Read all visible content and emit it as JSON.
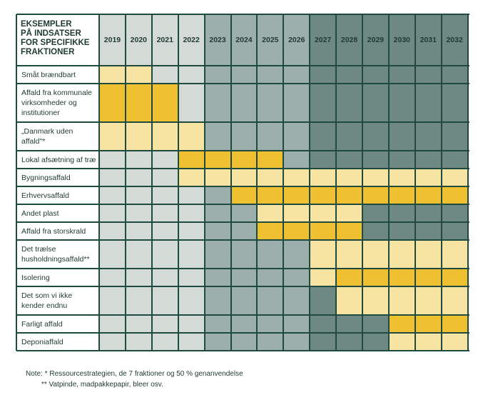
{
  "chart_data": {
    "type": "heatmap",
    "title": "EKSEMPLER\nPÅ INDSATSER\nFOR SPECIFIKKE\nFRAKTIONER",
    "years": [
      "2019",
      "2020",
      "2021",
      "2022",
      "2023",
      "2024",
      "2025",
      "2026",
      "2027",
      "2028",
      "2029",
      "2030",
      "2031",
      "2032"
    ],
    "rows": [
      {
        "label": "Småt brændbart",
        "values": [
          1,
          1,
          0,
          0,
          0,
          0,
          0,
          0,
          0,
          0,
          0,
          0,
          0,
          0
        ]
      },
      {
        "label": "Affald fra kommunale\nvirksomheder og\ninstitutioner",
        "values": [
          2,
          2,
          2,
          0,
          0,
          0,
          0,
          0,
          0,
          0,
          0,
          0,
          0,
          0
        ]
      },
      {
        "label": "„Danmark uden\naffald\"*",
        "values": [
          1,
          1,
          1,
          1,
          0,
          0,
          0,
          0,
          0,
          0,
          0,
          0,
          0,
          0
        ]
      },
      {
        "label": "Lokal afsætning af træ",
        "values": [
          0,
          0,
          0,
          2,
          2,
          2,
          2,
          0,
          0,
          0,
          0,
          0,
          0,
          0
        ]
      },
      {
        "label": "Bygningsaffald",
        "values": [
          0,
          0,
          0,
          1,
          1,
          1,
          1,
          1,
          1,
          1,
          1,
          1,
          1,
          1
        ]
      },
      {
        "label": "Erhvervsaffald",
        "values": [
          0,
          0,
          0,
          0,
          0,
          2,
          2,
          2,
          2,
          2,
          2,
          2,
          2,
          2
        ]
      },
      {
        "label": "Andet plast",
        "values": [
          0,
          0,
          0,
          0,
          0,
          0,
          1,
          1,
          1,
          1,
          0,
          0,
          0,
          0
        ]
      },
      {
        "label": "Affald fra storskrald",
        "values": [
          0,
          0,
          0,
          0,
          0,
          0,
          2,
          2,
          2,
          2,
          0,
          0,
          0,
          0
        ]
      },
      {
        "label": "Det trælse\nhusholdningsaffald**",
        "values": [
          0,
          0,
          0,
          0,
          0,
          0,
          0,
          0,
          1,
          1,
          1,
          1,
          1,
          1
        ]
      },
      {
        "label": "Isolering",
        "values": [
          0,
          0,
          0,
          0,
          0,
          0,
          0,
          0,
          1,
          2,
          2,
          2,
          2,
          2
        ]
      },
      {
        "label": "Det som vi ikke\nkender endnu",
        "values": [
          0,
          0,
          0,
          0,
          0,
          0,
          0,
          0,
          0,
          1,
          1,
          1,
          1,
          1
        ]
      },
      {
        "label": "Farligt affald",
        "values": [
          0,
          0,
          0,
          0,
          0,
          0,
          0,
          0,
          0,
          0,
          0,
          2,
          2,
          2
        ]
      },
      {
        "label": "Deponiaffald",
        "values": [
          0,
          0,
          0,
          0,
          0,
          0,
          0,
          0,
          0,
          0,
          0,
          1,
          1,
          1
        ]
      }
    ],
    "value_colors": {
      "1": "#f7e4a2",
      "2": "#efc131"
    },
    "period_colors": [
      "#d4dbd6",
      "#9dafab",
      "#6e8882"
    ],
    "line_color": "#1f4a3f"
  },
  "notes": [
    "Note: * Ressourcestrategien, de 7 fraktioner og 50 % genanvendelse",
    "** Vatpinde, madpakkepapir, bleer osv."
  ]
}
